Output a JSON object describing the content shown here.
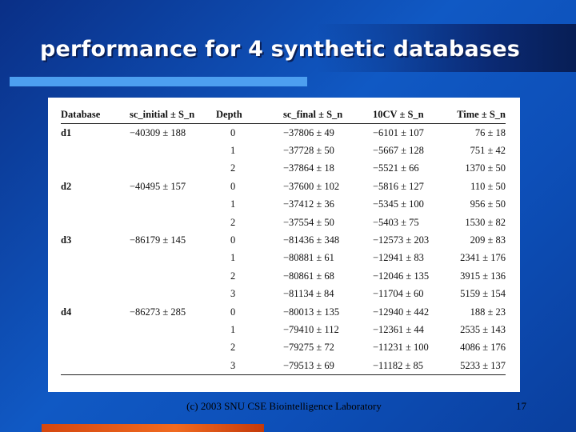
{
  "slide": {
    "title": "performance for 4 synthetic databases",
    "footer": "(c) 2003 SNU CSE Biointelligence Laboratory",
    "page_number": "17"
  },
  "table": {
    "headers": [
      "Database",
      "sc_initial ± S_n",
      "Depth",
      "sc_final ± S_n",
      "10CV ± S_n",
      "Time ± S_n"
    ],
    "rows": [
      [
        "d1",
        "−40309 ± 188",
        "0",
        "−37806 ± 49",
        "−6101 ± 107",
        "76 ± 18"
      ],
      [
        "",
        "",
        "1",
        "−37728 ± 50",
        "−5667 ± 128",
        "751 ± 42"
      ],
      [
        "",
        "",
        "2",
        "−37864 ± 18",
        "−5521 ± 66",
        "1370 ± 50"
      ],
      [
        "d2",
        "−40495 ± 157",
        "0",
        "−37600 ± 102",
        "−5816 ± 127",
        "110 ± 50"
      ],
      [
        "",
        "",
        "1",
        "−37412 ± 36",
        "−5345 ± 100",
        "956 ± 50"
      ],
      [
        "",
        "",
        "2",
        "−37554 ± 50",
        "−5403 ± 75",
        "1530 ± 82"
      ],
      [
        "d3",
        "−86179 ± 145",
        "0",
        "−81436 ± 348",
        "−12573 ± 203",
        "209 ± 83"
      ],
      [
        "",
        "",
        "1",
        "−80881 ± 61",
        "−12941 ± 83",
        "2341 ± 176"
      ],
      [
        "",
        "",
        "2",
        "−80861 ± 68",
        "−12046 ± 135",
        "3915 ± 136"
      ],
      [
        "",
        "",
        "3",
        "−81134 ± 84",
        "−11704 ± 60",
        "5159 ± 154"
      ],
      [
        "d4",
        "−86273 ± 285",
        "0",
        "−80013 ± 135",
        "−12940 ± 442",
        "188 ± 23"
      ],
      [
        "",
        "",
        "1",
        "−79410 ± 112",
        "−12361 ± 44",
        "2535 ± 143"
      ],
      [
        "",
        "",
        "2",
        "−79275 ± 72",
        "−11231 ± 100",
        "4086 ± 176"
      ],
      [
        "",
        "",
        "3",
        "−79513 ± 69",
        "−11182 ± 85",
        "5233 ± 137"
      ]
    ]
  }
}
